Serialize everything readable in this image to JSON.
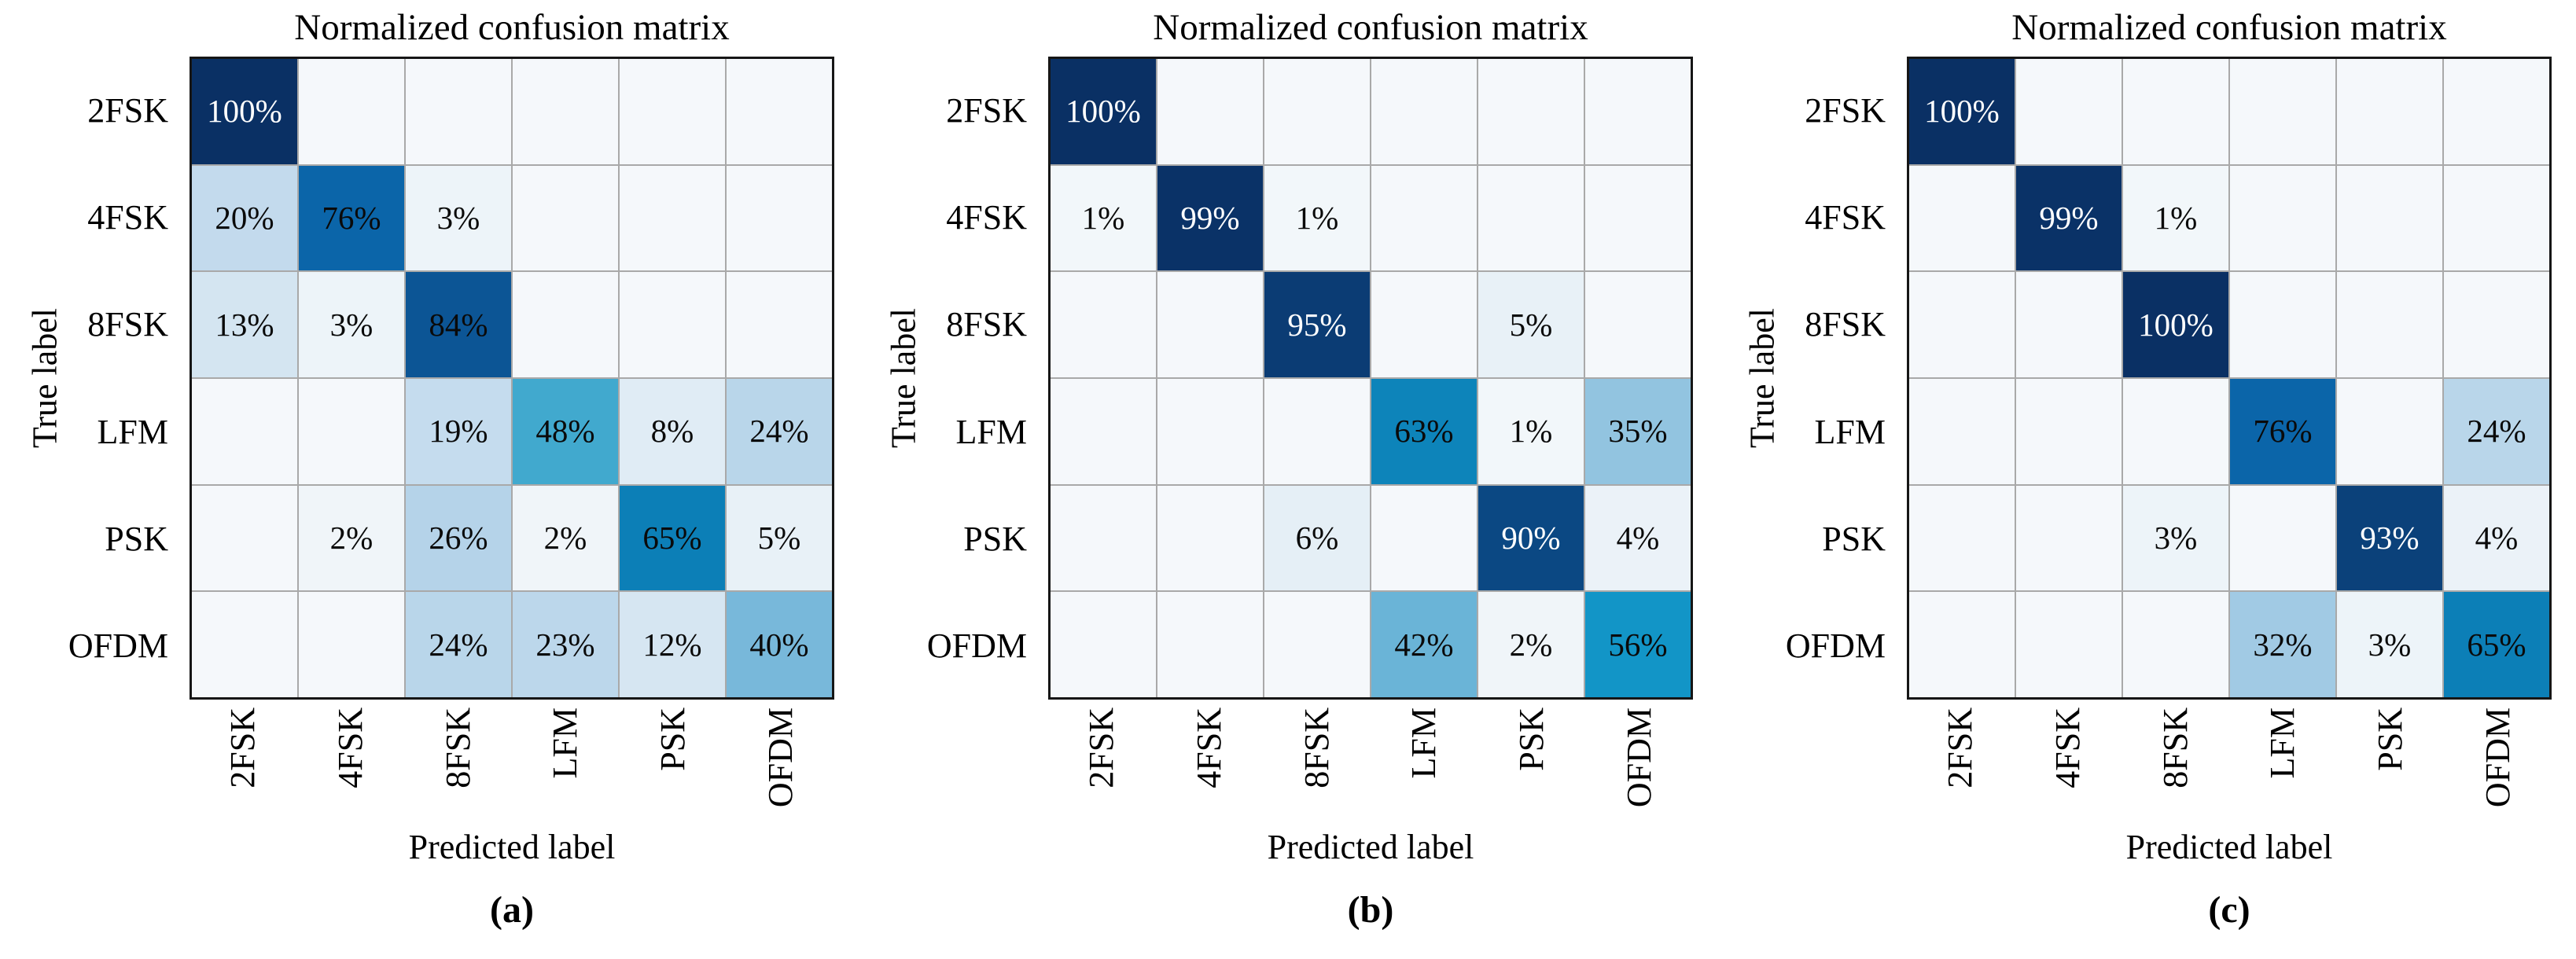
{
  "figure": {
    "colors": {
      "background": "#ffffff",
      "grid_line": "#a9a9a9",
      "matrix_border": "#161616",
      "axis_text": "#000000",
      "cell_text_dark": "#0a0a0a",
      "cell_text_light": "#ffffff",
      "colormap_name": "blues-heatmap",
      "colormap_stops": [
        [
          0,
          "#f5f8fb"
        ],
        [
          10,
          "#dbe9f3"
        ],
        [
          20,
          "#c3daed"
        ],
        [
          30,
          "#abcfe6"
        ],
        [
          40,
          "#78b8da"
        ],
        [
          48,
          "#41a9ce"
        ],
        [
          56,
          "#1295c7"
        ],
        [
          66,
          "#0b7db5"
        ],
        [
          76,
          "#0b65a9"
        ],
        [
          86,
          "#0c5190"
        ],
        [
          100,
          "#0a3064"
        ]
      ]
    },
    "white_text_threshold": 90,
    "min_value_shown": 1,
    "value_suffix": "%"
  },
  "chart_data": [
    {
      "type": "heatmap",
      "caption": "(a)",
      "title": "Normalized confusion matrix",
      "xlabel": "Predicted label",
      "ylabel": "True label",
      "x_labels": [
        "2FSK",
        "4FSK",
        "8FSK",
        "LFM",
        "PSK",
        "OFDM"
      ],
      "y_labels": [
        "2FSK",
        "4FSK",
        "8FSK",
        "LFM",
        "PSK",
        "OFDM"
      ],
      "values": [
        [
          100,
          0,
          0,
          0,
          0,
          0
        ],
        [
          20,
          76,
          3,
          0,
          0,
          0
        ],
        [
          13,
          3,
          84,
          0,
          0,
          0
        ],
        [
          0,
          0,
          19,
          48,
          8,
          24
        ],
        [
          0,
          2,
          26,
          2,
          65,
          5
        ],
        [
          0,
          0,
          24,
          23,
          12,
          40
        ]
      ],
      "value_range": [
        0,
        100
      ],
      "units": "%"
    },
    {
      "type": "heatmap",
      "caption": "(b)",
      "title": "Normalized confusion matrix",
      "xlabel": "Predicted label",
      "ylabel": "True label",
      "x_labels": [
        "2FSK",
        "4FSK",
        "8FSK",
        "LFM",
        "PSK",
        "OFDM"
      ],
      "y_labels": [
        "2FSK",
        "4FSK",
        "8FSK",
        "LFM",
        "PSK",
        "OFDM"
      ],
      "values": [
        [
          100,
          0,
          0,
          0,
          0,
          0
        ],
        [
          1,
          99,
          1,
          0,
          0,
          0
        ],
        [
          0,
          0,
          95,
          0,
          5,
          0
        ],
        [
          0,
          0,
          0,
          63,
          1,
          35
        ],
        [
          0,
          0,
          6,
          0,
          90,
          4
        ],
        [
          0,
          0,
          0,
          42,
          2,
          56
        ]
      ],
      "value_range": [
        0,
        100
      ],
      "units": "%"
    },
    {
      "type": "heatmap",
      "caption": "(c)",
      "title": "Normalized confusion matrix",
      "xlabel": "Predicted label",
      "ylabel": "True label",
      "x_labels": [
        "2FSK",
        "4FSK",
        "8FSK",
        "LFM",
        "PSK",
        "OFDM"
      ],
      "y_labels": [
        "2FSK",
        "4FSK",
        "8FSK",
        "LFM",
        "PSK",
        "OFDM"
      ],
      "values": [
        [
          100,
          0,
          0,
          0,
          0,
          0
        ],
        [
          0,
          99,
          1,
          0,
          0,
          0
        ],
        [
          0,
          0,
          100,
          0,
          0,
          0
        ],
        [
          0,
          0,
          0,
          76,
          0,
          24
        ],
        [
          0,
          0,
          3,
          0,
          93,
          4
        ],
        [
          0,
          0,
          0,
          32,
          3,
          65
        ]
      ],
      "value_range": [
        0,
        100
      ],
      "units": "%"
    }
  ]
}
